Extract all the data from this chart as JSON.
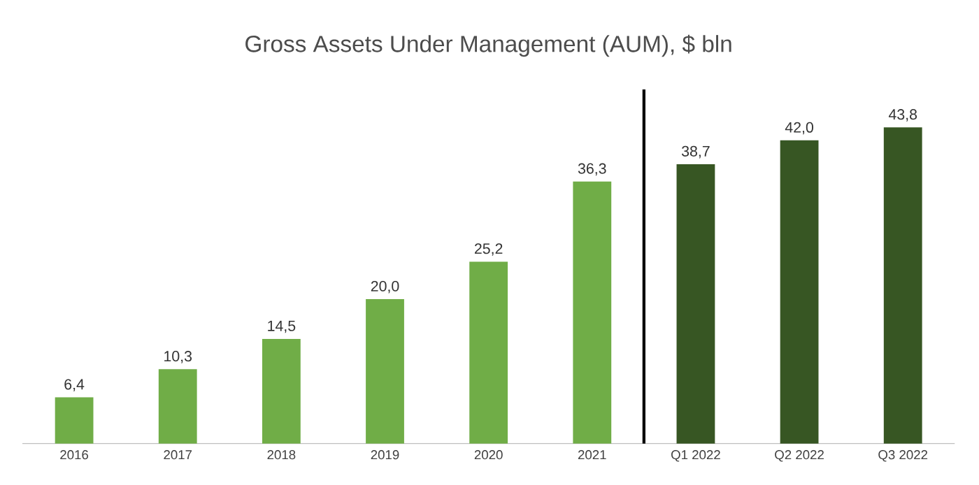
{
  "chart_data": {
    "type": "bar",
    "title": "Gross Assets Under Management (AUM), $ bln",
    "categories": [
      "2016",
      "2017",
      "2018",
      "2019",
      "2020",
      "2021",
      "Q1 2022",
      "Q2 2022",
      "Q3 2022"
    ],
    "values": [
      6.4,
      10.3,
      14.5,
      20.0,
      25.2,
      36.3,
      38.7,
      42.0,
      43.8
    ],
    "value_labels": [
      "6,4",
      "10,3",
      "14,5",
      "20,0",
      "25,2",
      "36,3",
      "38,7",
      "42,0",
      "43,8"
    ],
    "colors": [
      "#70ad47",
      "#70ad47",
      "#70ad47",
      "#70ad47",
      "#70ad47",
      "#70ad47",
      "#375623",
      "#375623",
      "#375623"
    ]
  }
}
